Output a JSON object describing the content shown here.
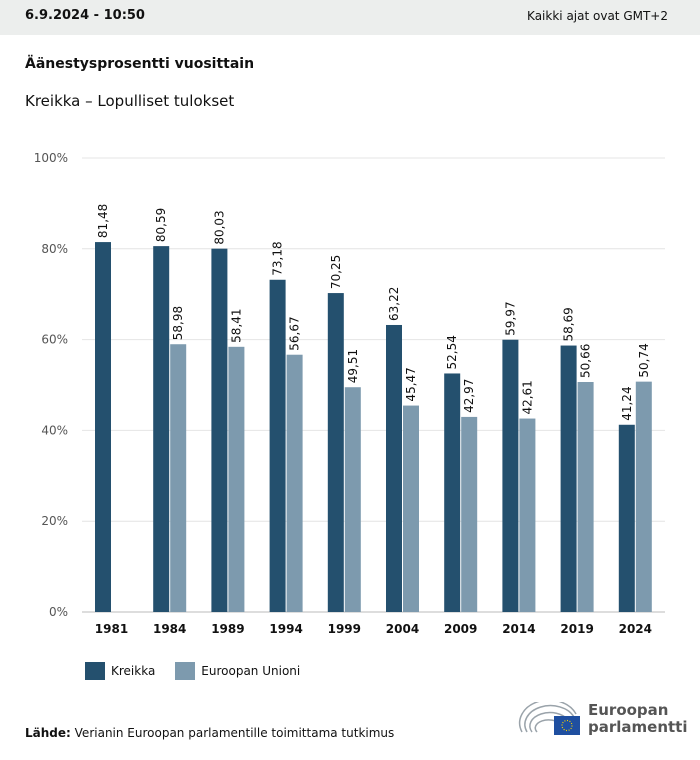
{
  "header": {
    "date": "6.9.2024 - 10:50",
    "timezone": "Kaikki ajat ovat GMT+2"
  },
  "title": "Äänestysprosentti vuosittain",
  "subtitle": "Kreikka – Lopulliset tulokset",
  "source": {
    "label": "Lähde:",
    "text": "Verianin Euroopan parlamentille toimittama tutkimus"
  },
  "logo": {
    "line1": "Euroopan",
    "line2": "parlamentti"
  },
  "chart_data": {
    "type": "bar",
    "categories": [
      "1981",
      "1984",
      "1989",
      "1994",
      "1999",
      "2004",
      "2009",
      "2014",
      "2019",
      "2024"
    ],
    "series": [
      {
        "name": "Kreikka",
        "color": "#24506e",
        "values": [
          81.48,
          80.59,
          80.03,
          73.18,
          70.25,
          63.22,
          52.54,
          59.97,
          58.69,
          41.24
        ]
      },
      {
        "name": "Euroopan Unioni",
        "color": "#7d9aae",
        "values": [
          null,
          58.98,
          58.41,
          56.67,
          49.51,
          45.47,
          42.97,
          42.61,
          50.66,
          50.74
        ]
      }
    ],
    "ylim": [
      0,
      100
    ],
    "yticks": [
      "0%",
      "20%",
      "40%",
      "60%",
      "80%",
      "100%"
    ],
    "grid": true,
    "legend": "bottom-left"
  }
}
